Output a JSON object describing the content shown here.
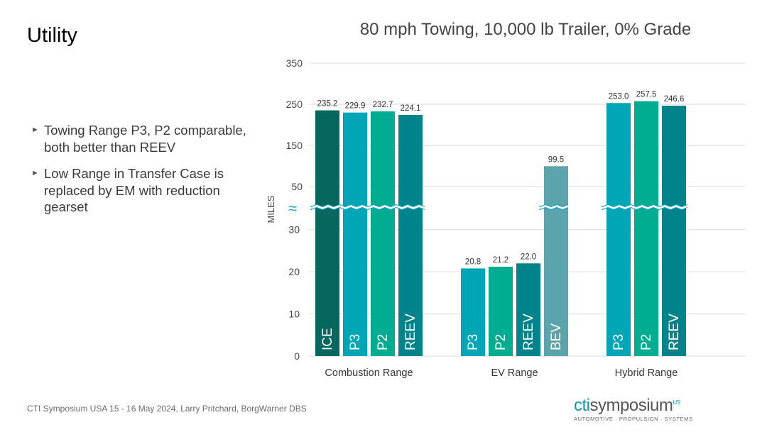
{
  "slide": {
    "title": "Utility",
    "bullets": [
      "Towing Range P3, P2 comparable, both better than REEV",
      "Low Range in Transfer Case is replaced by EM with reduction gearset"
    ],
    "footer": "CTI Symposium USA 15 - 16 May 2024, Larry Pritchard, BorgWarner DBS",
    "logo": {
      "prefix": "cti",
      "main": "symposium",
      "sup": "US",
      "tagline": "AUTOMOTIVE · PROPULSION · SYSTEMS"
    }
  },
  "chart_data": {
    "type": "bar",
    "title": "80 mph Towing, 10,000 lb Trailer, 0% Grade",
    "ylabel": "MILES",
    "axis_break": true,
    "lower_ticks": [
      0,
      10,
      20,
      30
    ],
    "upper_ticks": [
      50,
      150,
      250,
      350
    ],
    "lower_range": [
      0,
      35
    ],
    "upper_range": [
      0,
      350
    ],
    "break_value": 35,
    "grid": true,
    "colors": {
      "ICE": "#06675f",
      "P3": "#00a6b5",
      "P2": "#00ad91",
      "REEV": "#00838a",
      "BEV": "#5ba4ab"
    },
    "groups": [
      {
        "name": "Combustion Range",
        "bars": [
          {
            "label": "ICE",
            "value": 235.2,
            "value_label": "235.2"
          },
          {
            "label": "P3",
            "value": 229.9,
            "value_label": "229.9"
          },
          {
            "label": "P2",
            "value": 232.7,
            "value_label": "232.7"
          },
          {
            "label": "REEV",
            "value": 224.1,
            "value_label": "224.1"
          }
        ]
      },
      {
        "name": "EV Range",
        "bars": [
          {
            "label": "P3",
            "value": 20.8,
            "value_label": "20.8"
          },
          {
            "label": "P2",
            "value": 21.2,
            "value_label": "21.2"
          },
          {
            "label": "REEV",
            "value": 22.0,
            "value_label": "22.0"
          },
          {
            "label": "BEV",
            "value": 99.5,
            "value_label": "99.5"
          }
        ]
      },
      {
        "name": "Hybrid Range",
        "bars": [
          {
            "label": "P3",
            "value": 253.0,
            "value_label": "253.0"
          },
          {
            "label": "P2",
            "value": 257.5,
            "value_label": "257.5"
          },
          {
            "label": "REEV",
            "value": 246.6,
            "value_label": "246.6"
          }
        ]
      }
    ]
  }
}
